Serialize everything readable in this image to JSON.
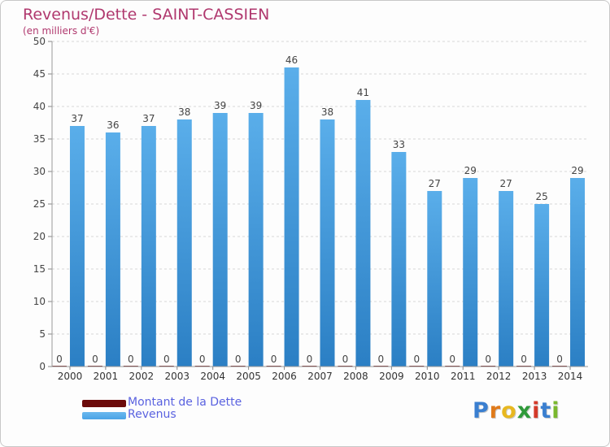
{
  "header": {
    "title": "Revenus/Dette - SAINT-CASSIEN",
    "subtitle": "(en milliers d'€)"
  },
  "chart_data": {
    "type": "bar",
    "title": "Revenus/Dette - SAINT-CASSIEN",
    "ylabel": "(en milliers d'€)",
    "xlabel": "",
    "ylim": [
      0,
      50
    ],
    "yticks": [
      0,
      5,
      10,
      15,
      20,
      25,
      30,
      35,
      40,
      45,
      50
    ],
    "grid": true,
    "categories": [
      "2000",
      "2001",
      "2002",
      "2003",
      "2004",
      "2005",
      "2006",
      "2007",
      "2008",
      "2009",
      "2010",
      "2011",
      "2012",
      "2013",
      "2014"
    ],
    "series": [
      {
        "name": "Montant de la Dette",
        "color": "#6b0a0a",
        "values": [
          0,
          0,
          0,
          0,
          0,
          0,
          0,
          0,
          0,
          0,
          0,
          0,
          0,
          0,
          0
        ]
      },
      {
        "name": "Revenus",
        "color": "#3a8fd6",
        "values": [
          37,
          36,
          37,
          38,
          39,
          39,
          46,
          38,
          41,
          33,
          27,
          29,
          27,
          25,
          29
        ]
      }
    ],
    "legend": "bottom-left"
  },
  "legend": [
    {
      "label": "Montant de la Dette",
      "color": "#6b0a0a"
    },
    {
      "label": "Revenus",
      "color": "#4aa3e6"
    }
  ],
  "logo": {
    "letters": [
      "P",
      "r",
      "o",
      "x",
      "i",
      "t",
      "i"
    ],
    "colors": [
      "#3a7fd0",
      "#e07a1a",
      "#e8b820",
      "#2f9a3a",
      "#d43a2a",
      "#3a7fd0",
      "#7ab82e"
    ]
  }
}
